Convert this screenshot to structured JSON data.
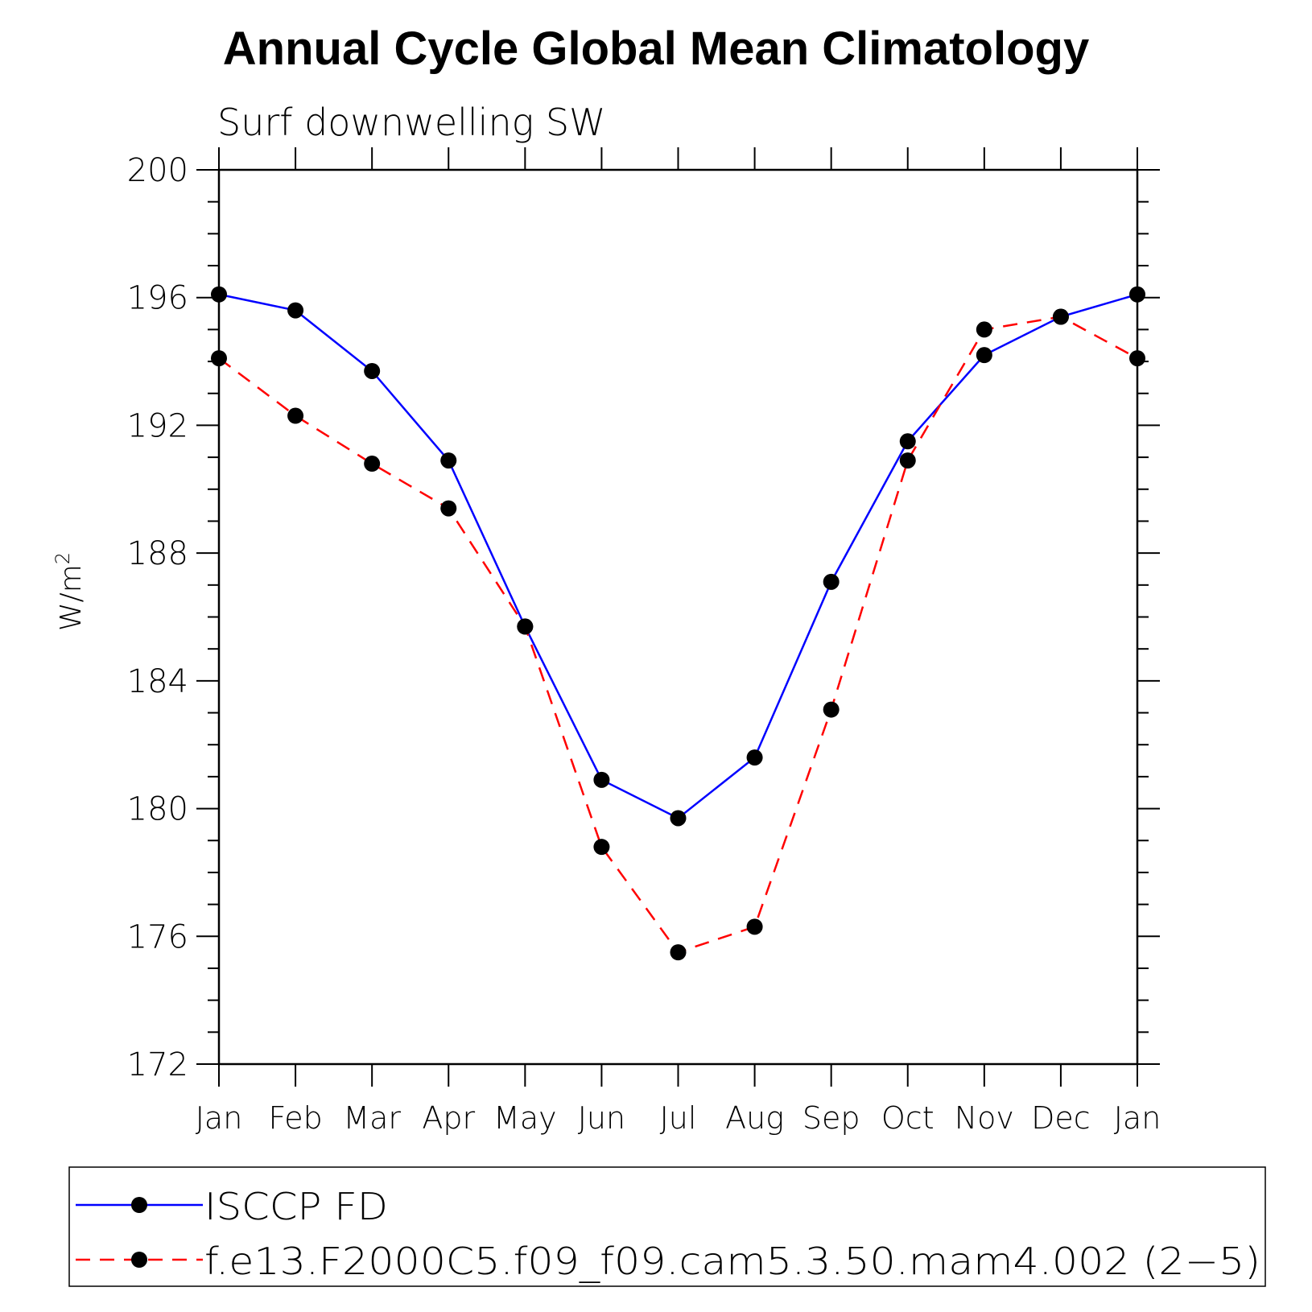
{
  "chart_data": {
    "type": "line",
    "title": "Annual Cycle Global Mean Climatology",
    "subtitle": "Surf downwelling SW",
    "ylabel": "W/m",
    "ylabel_superscript": "2",
    "xlabel": "",
    "categories": [
      "Jan",
      "Feb",
      "Mar",
      "Apr",
      "May",
      "Jun",
      "Jul",
      "Aug",
      "Sep",
      "Oct",
      "Nov",
      "Dec",
      "Jan"
    ],
    "ylim": [
      172,
      200
    ],
    "yticks": [
      172,
      176,
      180,
      184,
      188,
      192,
      196,
      200
    ],
    "y_minor_step": 1,
    "grid": false,
    "legend_position": "bottom",
    "series": [
      {
        "name": "ISCCP FD",
        "color": "#0000ff",
        "dash": "solid",
        "marker": "filled-circle",
        "values": [
          196.1,
          195.6,
          193.7,
          190.9,
          185.7,
          180.9,
          179.7,
          181.6,
          187.1,
          191.5,
          194.2,
          195.4,
          196.1
        ]
      },
      {
        "name": "f.e13.F2000C5.f09_f09.cam5.3.50.mam4.002 (2−5)",
        "color": "#ff0000",
        "dash": "dashed",
        "marker": "filled-circle",
        "values": [
          194.1,
          192.3,
          190.8,
          189.4,
          185.7,
          178.8,
          175.5,
          176.3,
          183.1,
          190.9,
          195.0,
          195.4,
          194.1
        ]
      }
    ]
  }
}
